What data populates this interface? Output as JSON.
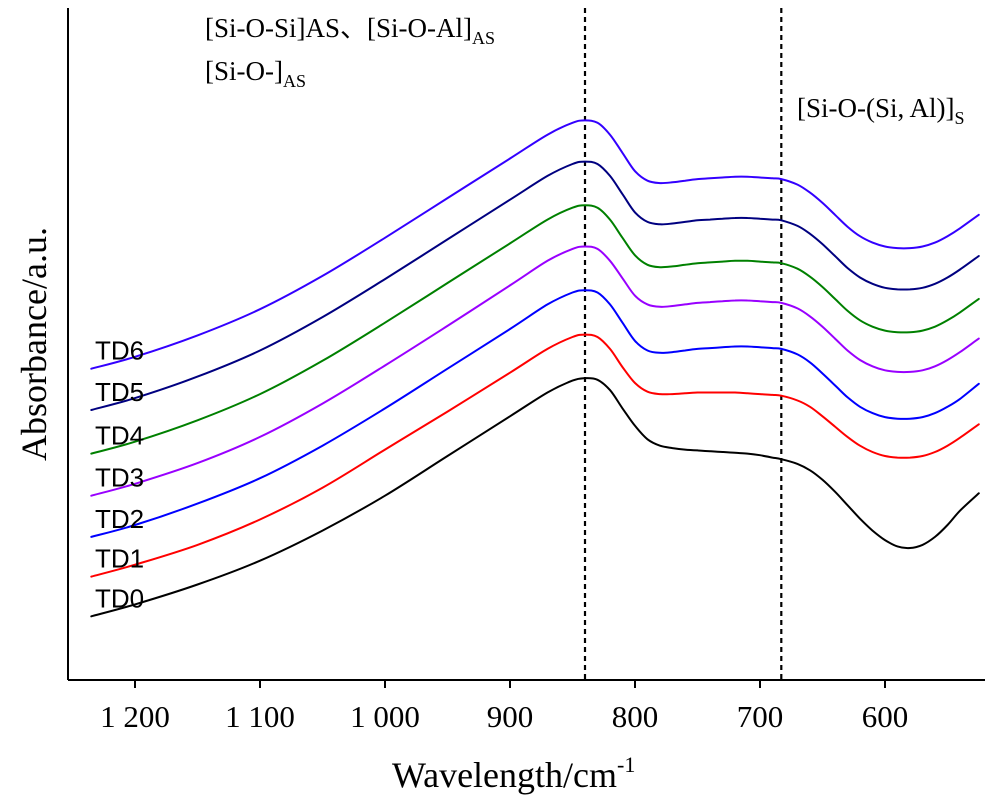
{
  "chart_data": {
    "type": "line",
    "xlabel": {
      "main": "Wavelength/cm",
      "sup": "-1"
    },
    "ylabel": "Absorbance/a.u.",
    "xlim": [
      1240,
      520
    ],
    "x_reversed": true,
    "ylim": [
      0,
      7.6
    ],
    "grid": false,
    "x_ticks": [
      {
        "value": 1200,
        "label": "1 200"
      },
      {
        "value": 1100,
        "label": "1 100"
      },
      {
        "value": 1000,
        "label": "1 000"
      },
      {
        "value": 900,
        "label": "900"
      },
      {
        "value": 800,
        "label": "800"
      },
      {
        "value": 700,
        "label": "700"
      },
      {
        "value": 600,
        "label": "600"
      }
    ],
    "reference_lines": [
      840,
      683
    ],
    "annotations": [
      {
        "parts": [
          {
            "text": "[Si-O-Si]AS、[Si-O-Al]"
          },
          {
            "text": "AS",
            "sub": true
          }
        ]
      },
      {
        "parts": [
          {
            "text": "[Si-O-]"
          },
          {
            "text": "AS",
            "sub": true
          }
        ]
      },
      {
        "parts": [
          {
            "text": "[Si-O-(Si, Al)]"
          },
          {
            "text": "S",
            "sub": true
          }
        ]
      }
    ],
    "x": [
      1235,
      1200,
      1150,
      1100,
      1050,
      1000,
      950,
      900,
      870,
      850,
      840,
      830,
      820,
      810,
      800,
      790,
      780,
      770,
      760,
      750,
      740,
      730,
      720,
      710,
      700,
      690,
      683,
      670,
      660,
      650,
      640,
      630,
      620,
      610,
      600,
      590,
      580,
      570,
      560,
      550,
      540,
      525
    ],
    "series": [
      {
        "name": "TD0",
        "color": "#000000",
        "values": [
          0.4,
          0.55,
          0.8,
          1.1,
          1.48,
          1.92,
          2.42,
          2.92,
          3.22,
          3.37,
          3.4,
          3.38,
          3.25,
          3.02,
          2.8,
          2.63,
          2.55,
          2.52,
          2.5,
          2.49,
          2.48,
          2.47,
          2.46,
          2.45,
          2.43,
          2.4,
          2.38,
          2.32,
          2.24,
          2.12,
          1.97,
          1.8,
          1.63,
          1.48,
          1.36,
          1.28,
          1.26,
          1.3,
          1.4,
          1.55,
          1.73,
          1.95
        ]
      },
      {
        "name": "TD1",
        "color": "#ff0000",
        "values": [
          0.9,
          1.05,
          1.3,
          1.62,
          2.02,
          2.5,
          2.98,
          3.47,
          3.77,
          3.92,
          3.95,
          3.92,
          3.77,
          3.54,
          3.34,
          3.23,
          3.2,
          3.2,
          3.21,
          3.22,
          3.22,
          3.22,
          3.22,
          3.21,
          3.2,
          3.19,
          3.18,
          3.12,
          3.04,
          2.92,
          2.79,
          2.66,
          2.55,
          2.47,
          2.42,
          2.4,
          2.4,
          2.42,
          2.47,
          2.55,
          2.65,
          2.82
        ]
      },
      {
        "name": "TD2",
        "color": "#0000ff",
        "values": [
          1.4,
          1.55,
          1.82,
          2.14,
          2.55,
          3.02,
          3.52,
          4.02,
          4.33,
          4.48,
          4.51,
          4.48,
          4.33,
          4.1,
          3.87,
          3.75,
          3.72,
          3.73,
          3.75,
          3.77,
          3.78,
          3.79,
          3.8,
          3.8,
          3.79,
          3.78,
          3.77,
          3.7,
          3.6,
          3.46,
          3.31,
          3.16,
          3.04,
          2.96,
          2.91,
          2.89,
          2.89,
          2.91,
          2.96,
          3.04,
          3.14,
          3.33
        ]
      },
      {
        "name": "TD3",
        "color": "#9900ff",
        "values": [
          1.92,
          2.07,
          2.33,
          2.66,
          3.08,
          3.56,
          4.06,
          4.57,
          4.88,
          5.03,
          5.06,
          5.03,
          4.88,
          4.66,
          4.44,
          4.33,
          4.3,
          4.31,
          4.33,
          4.35,
          4.36,
          4.37,
          4.38,
          4.38,
          4.37,
          4.36,
          4.35,
          4.28,
          4.18,
          4.05,
          3.9,
          3.75,
          3.63,
          3.55,
          3.5,
          3.48,
          3.48,
          3.5,
          3.55,
          3.63,
          3.73,
          3.9
        ]
      },
      {
        "name": "TD4",
        "color": "#008000",
        "values": [
          2.45,
          2.6,
          2.87,
          3.2,
          3.62,
          4.1,
          4.6,
          5.1,
          5.4,
          5.55,
          5.58,
          5.55,
          5.4,
          5.17,
          4.95,
          4.83,
          4.8,
          4.81,
          4.83,
          4.85,
          4.86,
          4.87,
          4.88,
          4.88,
          4.87,
          4.86,
          4.85,
          4.78,
          4.68,
          4.55,
          4.4,
          4.25,
          4.13,
          4.05,
          4.0,
          3.98,
          3.98,
          4.0,
          4.05,
          4.13,
          4.23,
          4.4
        ]
      },
      {
        "name": "TD5",
        "color": "#000080",
        "values": [
          3.0,
          3.15,
          3.42,
          3.75,
          4.17,
          4.65,
          5.15,
          5.65,
          5.95,
          6.1,
          6.13,
          6.1,
          5.95,
          5.72,
          5.49,
          5.37,
          5.34,
          5.35,
          5.37,
          5.39,
          5.4,
          5.41,
          5.42,
          5.42,
          5.41,
          5.4,
          5.39,
          5.32,
          5.22,
          5.09,
          4.94,
          4.79,
          4.67,
          4.59,
          4.54,
          4.52,
          4.52,
          4.54,
          4.59,
          4.67,
          4.77,
          4.94
        ]
      },
      {
        "name": "TD6",
        "color": "#3300ff",
        "values": [
          3.52,
          3.67,
          3.94,
          4.27,
          4.69,
          5.17,
          5.67,
          6.17,
          6.47,
          6.62,
          6.65,
          6.62,
          6.47,
          6.24,
          6.01,
          5.89,
          5.86,
          5.87,
          5.89,
          5.91,
          5.92,
          5.93,
          5.94,
          5.94,
          5.93,
          5.92,
          5.91,
          5.84,
          5.74,
          5.61,
          5.46,
          5.31,
          5.19,
          5.11,
          5.06,
          5.04,
          5.04,
          5.06,
          5.11,
          5.19,
          5.29,
          5.46
        ]
      }
    ]
  }
}
